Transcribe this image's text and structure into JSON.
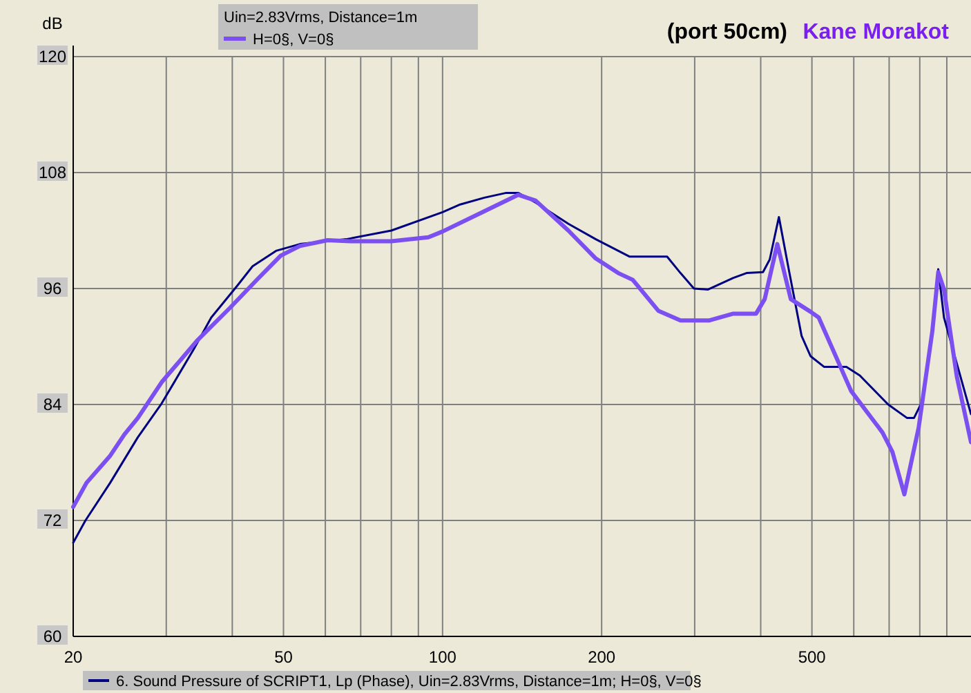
{
  "chart_data": {
    "type": "line",
    "title": "(port 50cm)",
    "ylabel": "dB",
    "legend_title": "Uin=2.83Vrms, Distance=1m",
    "annotations": [
      "Kane Morakot"
    ],
    "log": "x",
    "grid": true,
    "legend": "left",
    "xlim": [
      20,
      1000
    ],
    "ylim": [
      60,
      120
    ],
    "xticks": [
      20,
      {
        "value": 30,
        "label": null
      },
      {
        "value": 40,
        "label": null
      },
      50,
      {
        "value": 60,
        "label": null
      },
      {
        "value": 70,
        "label": null
      },
      {
        "value": 80,
        "label": null
      },
      {
        "value": 90,
        "label": null
      },
      100,
      200,
      {
        "value": 300,
        "label": null
      },
      {
        "value": 400,
        "label": null
      },
      500,
      {
        "value": 600,
        "label": null
      },
      {
        "value": 700,
        "label": null
      },
      {
        "value": 800,
        "label": null
      },
      {
        "value": 900,
        "label": null
      }
    ],
    "yticks": [
      60,
      72,
      84,
      96,
      108,
      120
    ],
    "series": [
      {
        "name": "6. Sound Pressure of SCRIPT1, Lp (Phase), Uin=2.83Vrms, Distance=1m; H=0§, V=0§",
        "color": "#000080",
        "x": [
          20,
          21.1,
          23.5,
          26.5,
          29.4,
          33.8,
          36.5,
          40.9,
          43.7,
          48.4,
          53.7,
          65.7,
          80,
          100,
          108,
          120,
          132,
          139,
          150,
          173,
          195,
          226,
          266,
          282,
          299,
          318,
          355,
          376,
          404,
          416,
          433,
          453,
          478,
          497,
          527,
          581,
          616,
          697,
          757,
          780,
          810,
          845,
          867,
          889,
          946,
          1000
        ],
        "values": [
          69.7,
          72,
          75.9,
          80.6,
          84.1,
          89.7,
          93,
          96.3,
          98.3,
          99.9,
          100.6,
          101.1,
          102,
          103.9,
          104.7,
          105.4,
          105.9,
          105.9,
          104.9,
          102.7,
          101.1,
          99.3,
          99.3,
          97.6,
          96,
          95.9,
          97.1,
          97.6,
          97.7,
          99,
          103.4,
          97.7,
          91.1,
          89,
          87.9,
          87.9,
          87,
          84,
          82.6,
          82.6,
          84.4,
          92,
          98,
          93,
          87.7,
          83
        ]
      },
      {
        "name": "H=0§, V=0§",
        "color": "#7b4ff0",
        "x": [
          20,
          21.2,
          23.5,
          25,
          26.5,
          29.4,
          34.3,
          39.6,
          44.7,
          49.4,
          53.7,
          60.6,
          66.9,
          80,
          94,
          100,
          120,
          139,
          150,
          173,
          195,
          215,
          229,
          256,
          282,
          320,
          355,
          392,
          407,
          430,
          456,
          497,
          515,
          593,
          680,
          710,
          748,
          796,
          845,
          867,
          889,
          940,
          1000
        ],
        "values": [
          73.4,
          75.9,
          78.7,
          80.9,
          82.6,
          86.3,
          90.6,
          94,
          97,
          99.4,
          100.4,
          101,
          100.9,
          100.9,
          101.3,
          101.9,
          104,
          105.7,
          105.1,
          102,
          99.1,
          97.6,
          96.9,
          93.7,
          92.7,
          92.7,
          93.4,
          93.4,
          94.9,
          100.6,
          94.9,
          93.6,
          93,
          85.4,
          81.1,
          79.1,
          74.7,
          81.6,
          91.6,
          97.7,
          95.9,
          86.9,
          80.1
        ]
      }
    ]
  }
}
